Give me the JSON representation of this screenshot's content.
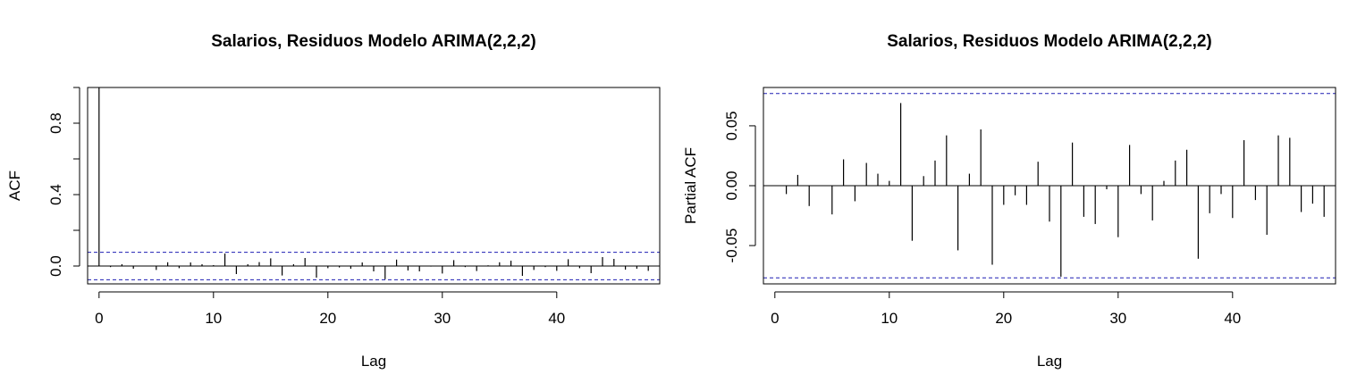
{
  "chart_data": [
    {
      "type": "bar",
      "title": "Salarios, Residuos Modelo ARIMA(2,2,2)",
      "xlabel": "Lag",
      "ylabel": "ACF",
      "xlim": [
        -1,
        49
      ],
      "ylim": [
        -0.1,
        1.0
      ],
      "x_ticks": [
        0,
        10,
        20,
        30,
        40
      ],
      "x_tick_labels": [
        "0",
        "10",
        "20",
        "30",
        "40"
      ],
      "y_ticks": [
        0.0,
        0.2,
        0.4,
        0.6,
        0.8,
        1.0
      ],
      "y_tick_labels": [
        "0.0",
        "",
        "0.4",
        "",
        "0.8",
        ""
      ],
      "grid": false,
      "confidence_bounds": [
        -0.077,
        0.077
      ],
      "bound_color": "#1f1fb4",
      "x": [
        0,
        1,
        2,
        3,
        4,
        5,
        6,
        7,
        8,
        9,
        10,
        11,
        12,
        13,
        14,
        15,
        16,
        17,
        18,
        19,
        20,
        21,
        22,
        23,
        24,
        25,
        26,
        27,
        28,
        29,
        30,
        31,
        32,
        33,
        34,
        35,
        36,
        37,
        38,
        39,
        40,
        41,
        42,
        43,
        44,
        45,
        46,
        47,
        48
      ],
      "values": [
        1.0,
        -0.006,
        0.01,
        -0.015,
        0.0,
        -0.022,
        0.021,
        -0.012,
        0.02,
        0.01,
        0.005,
        0.07,
        -0.045,
        0.01,
        0.022,
        0.043,
        -0.053,
        0.01,
        0.045,
        -0.065,
        -0.012,
        -0.008,
        -0.015,
        0.02,
        -0.03,
        -0.074,
        0.036,
        -0.025,
        -0.03,
        -0.003,
        -0.042,
        0.033,
        -0.006,
        -0.028,
        0.004,
        0.021,
        0.03,
        -0.055,
        -0.022,
        -0.006,
        -0.027,
        0.038,
        -0.012,
        -0.04,
        0.05,
        0.04,
        -0.02,
        -0.015,
        -0.027
      ]
    },
    {
      "type": "bar",
      "title": "Salarios, Residuos Modelo ARIMA(2,2,2)",
      "xlabel": "Lag",
      "ylabel": "Partial ACF",
      "xlim": [
        -1,
        49
      ],
      "ylim": [
        -0.082,
        0.082
      ],
      "x_ticks": [
        0,
        10,
        20,
        30,
        40
      ],
      "x_tick_labels": [
        "0",
        "10",
        "20",
        "30",
        "40"
      ],
      "y_ticks": [
        -0.05,
        0.0,
        0.05
      ],
      "y_tick_labels": [
        "-0.05",
        "0.00",
        "0.05"
      ],
      "grid": false,
      "confidence_bounds": [
        -0.077,
        0.077
      ],
      "bound_color": "#1f1fb4",
      "x": [
        1,
        2,
        3,
        4,
        5,
        6,
        7,
        8,
        9,
        10,
        11,
        12,
        13,
        14,
        15,
        16,
        17,
        18,
        19,
        20,
        21,
        22,
        23,
        24,
        25,
        26,
        27,
        28,
        29,
        30,
        31,
        32,
        33,
        34,
        35,
        36,
        37,
        38,
        39,
        40,
        41,
        42,
        43,
        44,
        45,
        46,
        47,
        48
      ],
      "values": [
        -0.007,
        0.009,
        -0.017,
        0.0,
        -0.024,
        0.022,
        -0.013,
        0.019,
        0.01,
        0.004,
        0.069,
        -0.046,
        0.008,
        0.021,
        0.042,
        -0.054,
        0.01,
        0.047,
        -0.066,
        -0.016,
        -0.008,
        -0.016,
        0.02,
        -0.03,
        -0.076,
        0.036,
        -0.026,
        -0.032,
        -0.003,
        -0.043,
        0.034,
        -0.007,
        -0.029,
        0.004,
        0.021,
        0.03,
        -0.061,
        -0.023,
        -0.007,
        -0.027,
        0.038,
        -0.012,
        -0.041,
        0.042,
        0.04,
        -0.022,
        -0.015,
        -0.026
      ]
    }
  ]
}
